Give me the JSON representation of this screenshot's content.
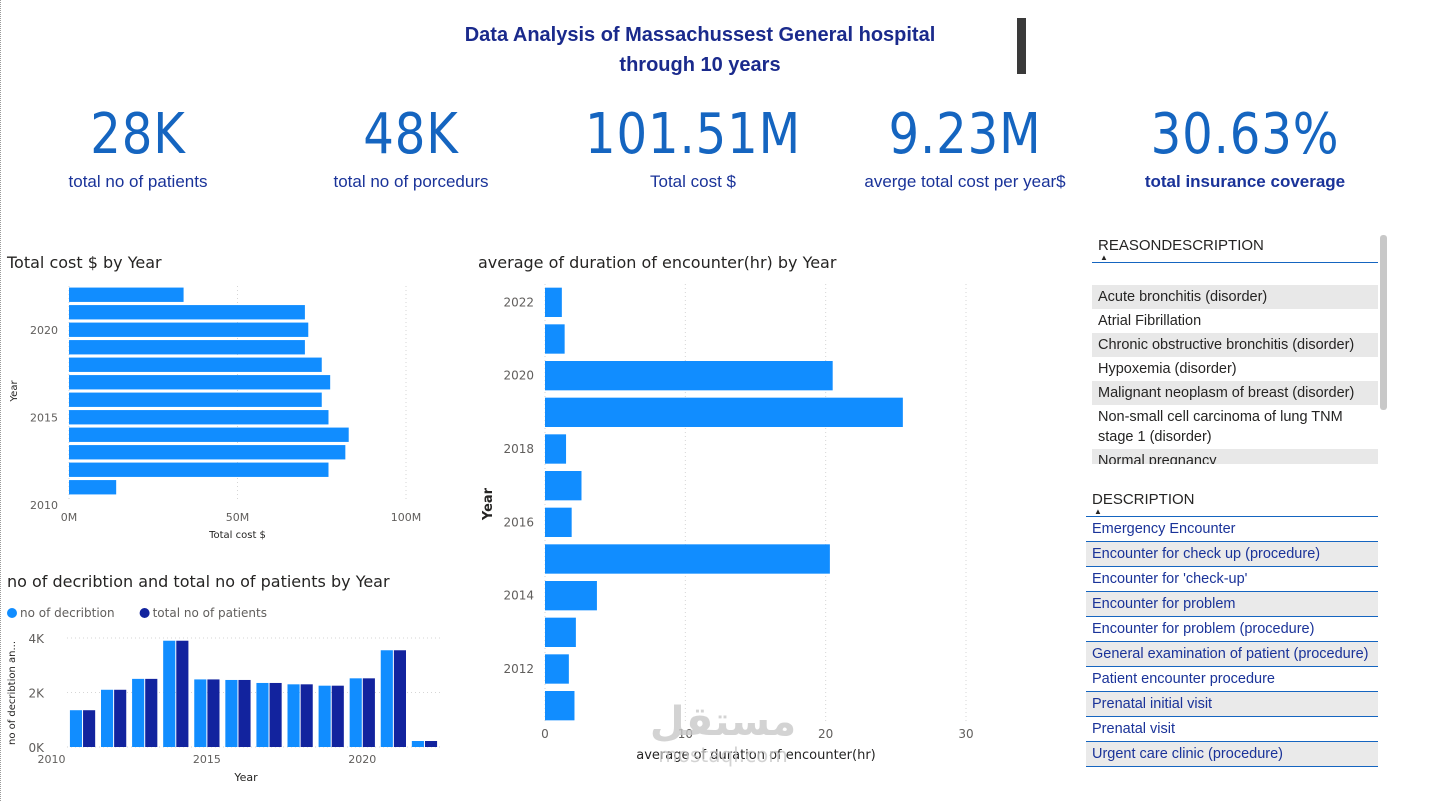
{
  "header": {
    "title_line1": "Data Analysis of Massachussest  General hospital",
    "title_line2": "through 10 years"
  },
  "kpis": [
    {
      "value": "28K",
      "label": "total no of patients"
    },
    {
      "value": "48K",
      "label": "total no of porcedurs"
    },
    {
      "value": "101.51M",
      "label": "Total cost $"
    },
    {
      "value": "9.23M",
      "label": "averge total cost per year$"
    },
    {
      "value": "30.63%",
      "label": "total insurance coverage"
    }
  ],
  "reason_slicer": {
    "header": "REASONDESCRIPTION",
    "items": [
      "Acute bronchitis (disorder)",
      "Atrial Fibrillation",
      "Chronic obstructive bronchitis (disorder)",
      "Hypoxemia (disorder)",
      "Malignant neoplasm of breast (disorder)",
      "Non-small cell carcinoma of lung TNM stage 1 (disorder)",
      "Normal pregnancy"
    ]
  },
  "description_slicer": {
    "header": "DESCRIPTION",
    "items": [
      "Emergency Encounter",
      "Encounter for check up (procedure)",
      "Encounter for 'check-up'",
      "Encounter for problem",
      "Encounter for problem (procedure)",
      "General examination of patient (procedure)",
      "Patient encounter procedure",
      "Prenatal initial visit",
      "Prenatal visit",
      "Urgent care clinic (procedure)"
    ]
  },
  "watermark": {
    "arabic": "مستقل",
    "latin": "mostaql.com"
  },
  "chart_data": [
    {
      "type": "bar",
      "orientation": "horizontal",
      "title": "Total cost $ by Year",
      "xlabel": "Total cost $",
      "ylabel": "Year",
      "categories": [
        2022,
        2021,
        2020,
        2019,
        2018,
        2017,
        2016,
        2015,
        2014,
        2013,
        2012,
        2011
      ],
      "values": [
        34,
        70,
        71,
        70,
        75,
        77.5,
        75,
        77,
        83,
        82,
        77,
        14
      ],
      "xlim": [
        0,
        100
      ],
      "x_ticks": [
        "0M",
        "50M",
        "100M"
      ],
      "y_ticks": [
        "2020",
        "2015",
        "2010"
      ],
      "grid": true
    },
    {
      "type": "bar",
      "orientation": "horizontal",
      "title": "average of duration of encounter(hr) by Year",
      "xlabel": "average of duration of encounter(hr)",
      "ylabel": "Year",
      "categories": [
        2022,
        2021,
        2020,
        2019,
        2018,
        2017,
        2016,
        2015,
        2014,
        2013,
        2012,
        2011
      ],
      "values": [
        1.2,
        1.4,
        20.5,
        25.5,
        1.5,
        2.6,
        1.9,
        20.3,
        3.7,
        2.2,
        1.7,
        2.1
      ],
      "xlim": [
        0,
        30
      ],
      "x_ticks": [
        "0",
        "10",
        "20",
        "30"
      ],
      "y_ticks": [
        "2022",
        "2020",
        "2018",
        "2016",
        "2014",
        "2012"
      ],
      "grid": true
    },
    {
      "type": "bar",
      "orientation": "vertical",
      "title": "no of decribtion and total no of patients by Year",
      "xlabel": "Year",
      "ylabel": "no of decribtion an...",
      "categories": [
        2011,
        2012,
        2013,
        2014,
        2015,
        2016,
        2017,
        2018,
        2019,
        2020,
        2021,
        2022
      ],
      "series": [
        {
          "name": "no of decribtion",
          "color": "#118dff",
          "values": [
            1350,
            2100,
            2500,
            3900,
            2480,
            2460,
            2350,
            2300,
            2250,
            2520,
            3550,
            220
          ]
        },
        {
          "name": "total no of patients",
          "color": "#12239e",
          "values": [
            1350,
            2100,
            2500,
            3900,
            2480,
            2460,
            2350,
            2300,
            2250,
            2520,
            3550,
            220
          ]
        }
      ],
      "ylim": [
        0,
        4000
      ],
      "y_ticks": [
        "0K",
        "2K",
        "4K"
      ],
      "x_ticks": [
        "2010",
        "2015",
        "2020"
      ],
      "legend": "top-left",
      "grid": true
    }
  ]
}
